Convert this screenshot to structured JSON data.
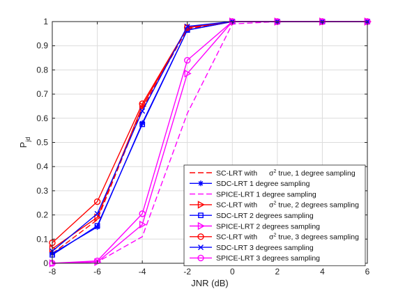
{
  "chart_data": {
    "type": "line",
    "xlabel": "JNR (dB)",
    "ylabel_main": "P",
    "ylabel_sub": "jd",
    "xlim": [
      -8,
      6
    ],
    "ylim": [
      0,
      1
    ],
    "xticks": [
      -8,
      -6,
      -4,
      -2,
      0,
      2,
      4,
      6
    ],
    "yticks": [
      0,
      0.1,
      0.2,
      0.3,
      0.4,
      0.5,
      0.6,
      0.7,
      0.8,
      0.9,
      1
    ],
    "x": [
      -8,
      -6,
      -4,
      -2,
      0,
      2,
      4,
      6
    ],
    "grid": true,
    "legend_position": "bottom-right",
    "series": [
      {
        "name": "SC-LRT with σ2 true, 1 degree sampling",
        "label_pre": "SC-LRT with ",
        "sigma": "σ",
        "sigma_sup": "2",
        "label_post": " true, 1 degree sampling",
        "color": "#ff0000",
        "dash": "dashed",
        "marker": "none",
        "values": [
          0.04,
          0.18,
          0.64,
          0.97,
          1.0,
          1.0,
          1.0,
          1.0
        ]
      },
      {
        "name": "SDC-LRT 1 degree sampling",
        "color": "#0000ff",
        "dash": "solid",
        "marker": "asterisk",
        "values": [
          0.04,
          0.15,
          0.58,
          0.965,
          1.0,
          1.0,
          1.0,
          1.0
        ]
      },
      {
        "name": "SPICE-LRT 1 degree sampling",
        "color": "#ff00ff",
        "dash": "dashed",
        "marker": "none",
        "values": [
          0.0,
          0.005,
          0.11,
          0.62,
          0.99,
          1.0,
          1.0,
          1.0
        ]
      },
      {
        "name": "SC-LRT with σ2 true, 2 degrees sampling",
        "label_pre": "SC-LRT with ",
        "sigma": "σ",
        "sigma_sup": "2",
        "label_post": " true, 2 degrees sampling",
        "color": "#ff0000",
        "dash": "solid",
        "marker": "triangle-right",
        "values": [
          0.06,
          0.19,
          0.65,
          0.975,
          1.0,
          1.0,
          1.0,
          1.0
        ]
      },
      {
        "name": "SDC-LRT 2 degrees sampling",
        "color": "#0000ff",
        "dash": "solid",
        "marker": "square",
        "values": [
          0.035,
          0.155,
          0.575,
          0.965,
          1.0,
          1.0,
          1.0,
          1.0
        ]
      },
      {
        "name": "SPICE-LRT 2 degrees sampling",
        "color": "#ff00ff",
        "dash": "solid",
        "marker": "triangle-right",
        "values": [
          0.0,
          0.005,
          0.16,
          0.785,
          1.0,
          1.0,
          1.0,
          1.0
        ]
      },
      {
        "name": "SC-LRT with σ2 true, 3 degrees sampling",
        "label_pre": "SC-LRT with ",
        "sigma": "σ",
        "sigma_sup": "2",
        "label_post": " true, 3 degrees sampling",
        "color": "#ff0000",
        "dash": "solid",
        "marker": "circle",
        "values": [
          0.085,
          0.255,
          0.66,
          0.975,
          1.0,
          1.0,
          1.0,
          1.0
        ]
      },
      {
        "name": "SDC-LRT 3 degrees sampling",
        "color": "#0000ff",
        "dash": "solid",
        "marker": "x",
        "values": [
          0.05,
          0.205,
          0.63,
          0.98,
          1.0,
          1.0,
          1.0,
          1.0
        ]
      },
      {
        "name": "SPICE-LRT 3 degrees sampling",
        "color": "#ff00ff",
        "dash": "solid",
        "marker": "circle",
        "values": [
          0.0,
          0.01,
          0.205,
          0.84,
          1.0,
          1.0,
          1.0,
          1.0
        ]
      }
    ]
  }
}
